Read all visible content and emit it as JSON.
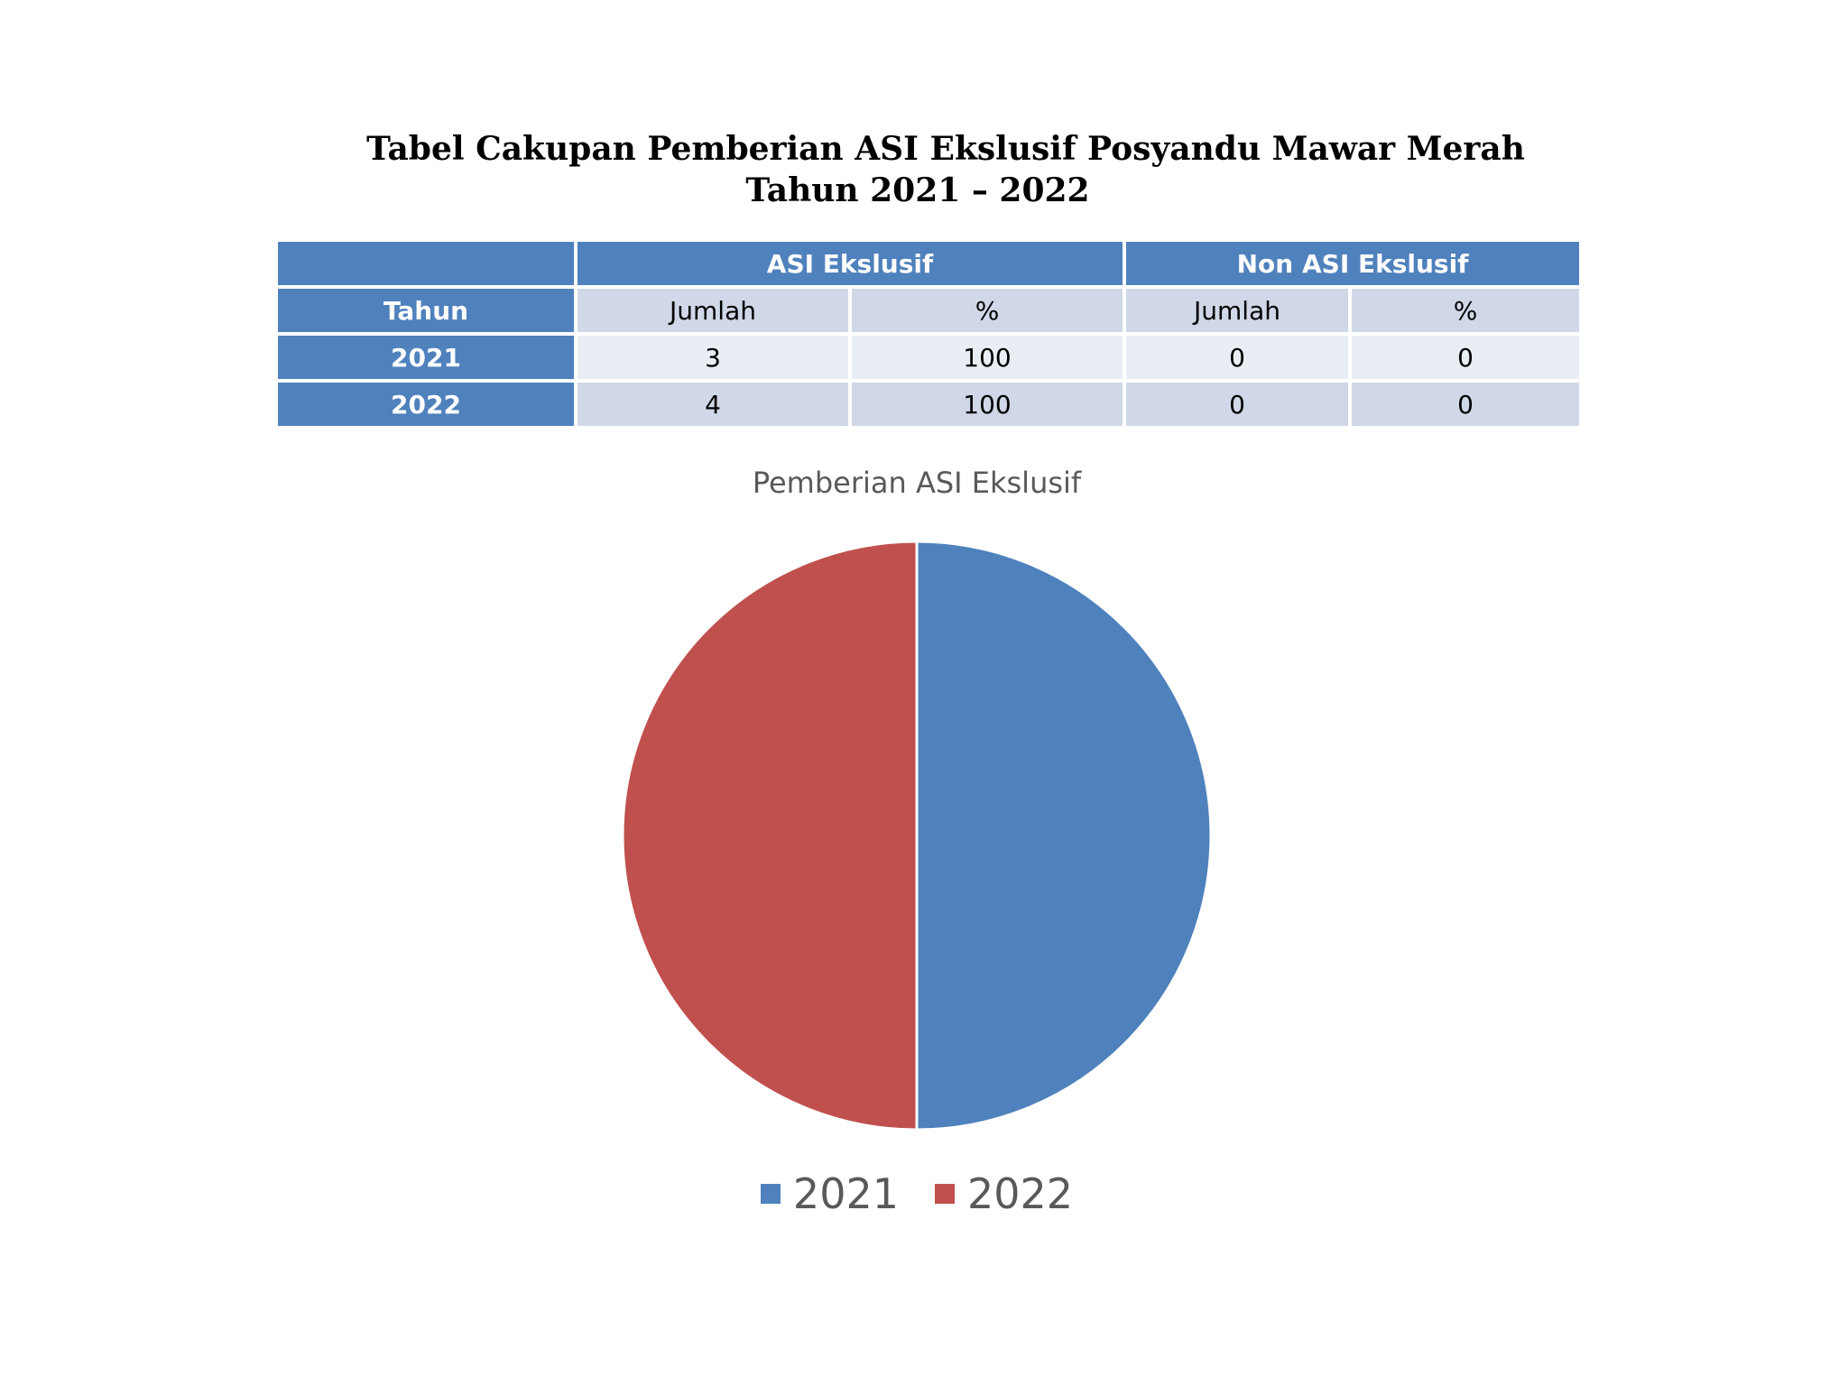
{
  "title": {
    "line1": "Tabel Cakupan Pemberian ASI Ekslusif Posyandu Mawar Merah",
    "line2": "Tahun 2021 – 2022"
  },
  "table": {
    "group_headers": [
      "ASI Ekslusif",
      "Non ASI Ekslusif"
    ],
    "row_header": "Tahun",
    "sub_headers": [
      "Jumlah",
      "%",
      "Jumlah",
      "%"
    ],
    "rows": [
      {
        "year": "2021",
        "asi_jumlah": "3",
        "asi_pct": "100",
        "non_jumlah": "0",
        "non_pct": "0"
      },
      {
        "year": "2022",
        "asi_jumlah": "4",
        "asi_pct": "100",
        "non_jumlah": "0",
        "non_pct": "0"
      }
    ]
  },
  "chart_data": {
    "type": "pie",
    "title": "Pemberian ASI Ekslusif",
    "categories": [
      "2021",
      "2022"
    ],
    "values": [
      50,
      50
    ],
    "colors": [
      "#4f81bd",
      "#c0504d"
    ],
    "legend": "bottom"
  }
}
